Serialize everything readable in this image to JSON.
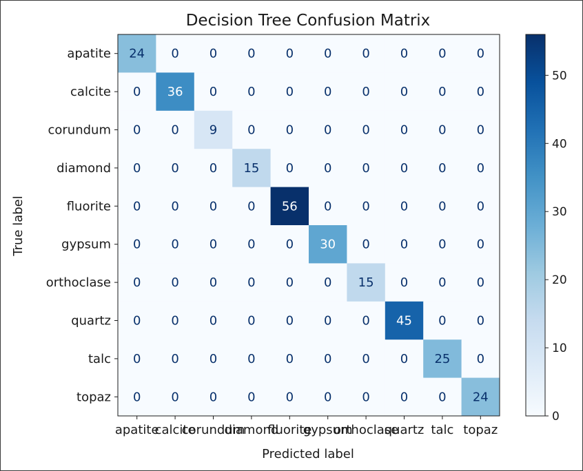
{
  "chart_data": {
    "type": "heatmap",
    "title": "Decision Tree Confusion Matrix",
    "xlabel": "Predicted label",
    "ylabel": "True label",
    "classes": [
      "apatite",
      "calcite",
      "corundum",
      "diamond",
      "fluorite",
      "gypsum",
      "orthoclase",
      "quartz",
      "talc",
      "topaz"
    ],
    "matrix": [
      [
        24,
        0,
        0,
        0,
        0,
        0,
        0,
        0,
        0,
        0
      ],
      [
        0,
        36,
        0,
        0,
        0,
        0,
        0,
        0,
        0,
        0
      ],
      [
        0,
        0,
        9,
        0,
        0,
        0,
        0,
        0,
        0,
        0
      ],
      [
        0,
        0,
        0,
        15,
        0,
        0,
        0,
        0,
        0,
        0
      ],
      [
        0,
        0,
        0,
        0,
        56,
        0,
        0,
        0,
        0,
        0
      ],
      [
        0,
        0,
        0,
        0,
        0,
        30,
        0,
        0,
        0,
        0
      ],
      [
        0,
        0,
        0,
        0,
        0,
        0,
        15,
        0,
        0,
        0
      ],
      [
        0,
        0,
        0,
        0,
        0,
        0,
        0,
        45,
        0,
        0
      ],
      [
        0,
        0,
        0,
        0,
        0,
        0,
        0,
        0,
        25,
        0
      ],
      [
        0,
        0,
        0,
        0,
        0,
        0,
        0,
        0,
        0,
        24
      ]
    ],
    "colormap": "Blues",
    "value_range": [
      0,
      56
    ],
    "colorbar_ticks": [
      0,
      10,
      20,
      30,
      40,
      50
    ],
    "grid": false
  }
}
